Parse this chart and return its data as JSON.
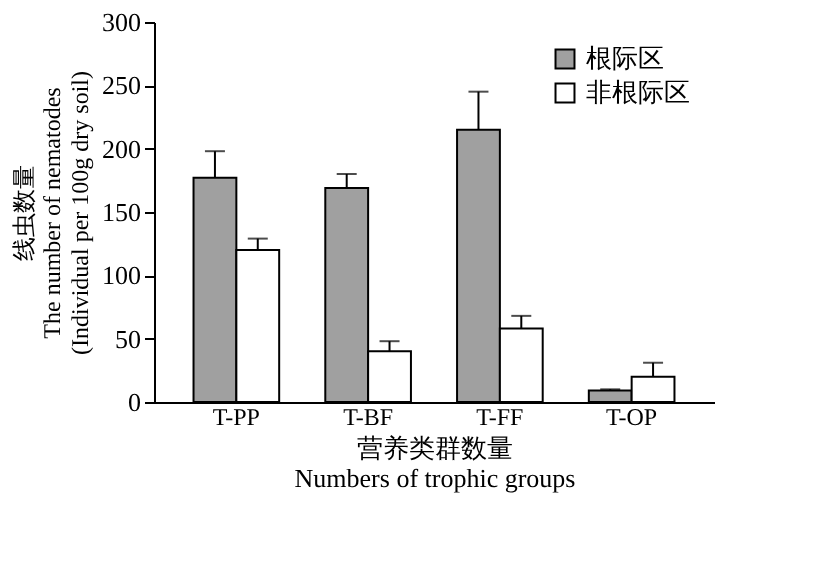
{
  "chart_data": {
    "type": "bar",
    "xlabel": "营养类群数量\nNumbers of trophic groups",
    "ylabel": "线虫数量\nThe number of nematodes\n(Individual per 100g dry soil)",
    "categories": [
      "T-PP",
      "T-BF",
      "T-FF",
      "T-OP"
    ],
    "series": [
      {
        "name": "根际区",
        "color": "#a0a0a0",
        "values": [
          177,
          169,
          215,
          9
        ],
        "errors": [
          [
            177,
            198
          ],
          [
            169,
            180
          ],
          [
            215,
            245
          ],
          [
            9,
            10
          ]
        ]
      },
      {
        "name": "非根际区",
        "color": "#ffffff",
        "values": [
          120,
          40,
          58,
          20
        ],
        "errors": [
          [
            120,
            129
          ],
          [
            40,
            48
          ],
          [
            58,
            68
          ],
          [
            20,
            31
          ]
        ]
      }
    ],
    "ylim": [
      0,
      300
    ],
    "yticks": [
      0,
      50,
      100,
      150,
      200,
      250,
      300
    ],
    "grid": false,
    "legend": "top right"
  }
}
